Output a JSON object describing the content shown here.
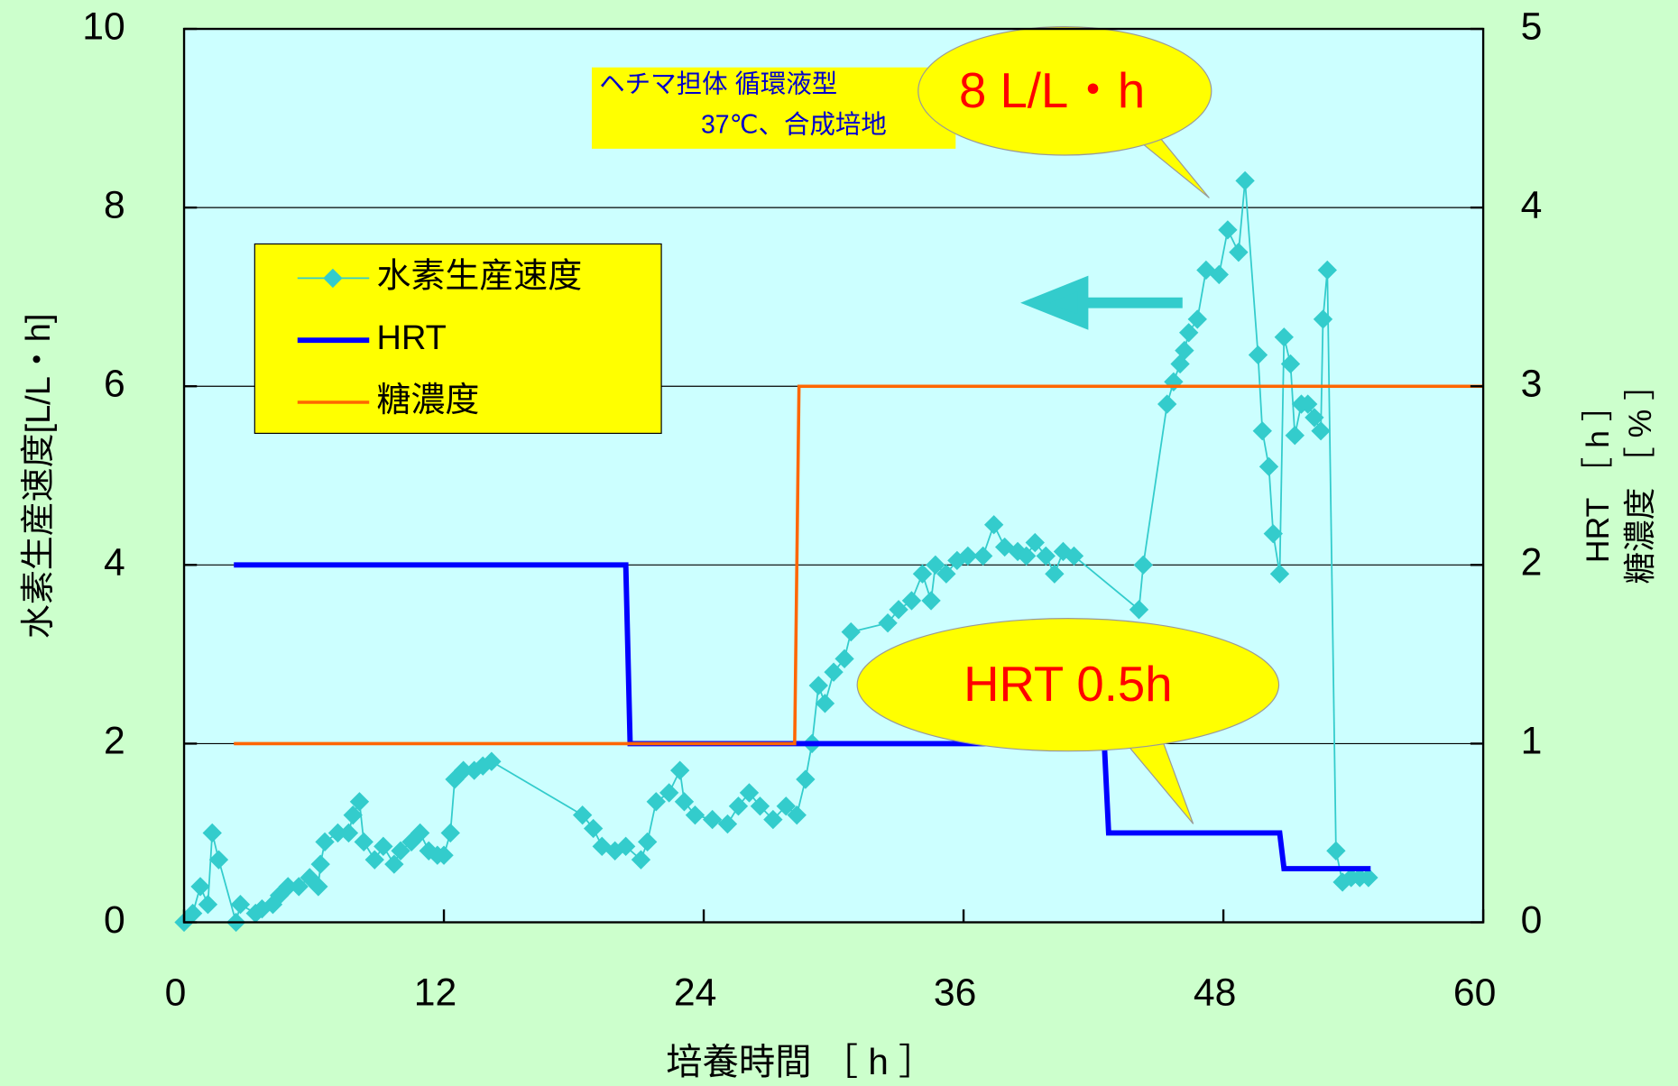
{
  "chart_data": {
    "type": "line",
    "xlabel": "培養時間 ［ h ］",
    "ylabel": "水素生産速度[L/L・h]",
    "y2label": [
      "HRT ［ h ］",
      "糖濃度 ［ % ］"
    ],
    "annotations": [
      "ヘチマ担体 循環液型",
      "37℃、合成培地",
      "8 L/L・h",
      "HRT 0.5h"
    ],
    "xlim": [
      0,
      60
    ],
    "xticks": [
      0,
      12,
      24,
      36,
      48,
      60
    ],
    "ylim": [
      0,
      10
    ],
    "yticks": [
      0,
      2,
      4,
      6,
      8,
      10
    ],
    "y2lim": [
      0,
      5
    ],
    "y2ticks": [
      0,
      1,
      2,
      3,
      4,
      5
    ],
    "grid": true,
    "legend": "upper left",
    "series": [
      {
        "name": "水素生産速度",
        "color": "#33cccc",
        "marker": "diamond",
        "x": [
          0.0,
          0.4,
          0.75,
          1.1,
          1.3,
          1.6,
          2.4,
          2.6,
          3.3,
          3.6,
          4.1,
          4.4,
          4.8,
          5.3,
          5.8,
          6.2,
          6.3,
          6.5,
          7.1,
          7.6,
          7.8,
          8.1,
          8.3,
          8.8,
          9.2,
          9.7,
          10.0,
          10.5,
          10.9,
          11.3,
          11.7,
          12.0,
          12.3,
          12.5,
          12.9,
          13.4,
          13.8,
          14.2,
          18.4,
          18.9,
          19.3,
          19.9,
          20.4,
          21.1,
          21.4,
          21.8,
          22.4,
          22.9,
          23.1,
          23.6,
          24.4,
          25.1,
          25.6,
          26.1,
          26.6,
          27.2,
          27.8,
          28.3,
          28.7,
          29.0,
          29.3,
          29.6,
          30.0,
          30.5,
          30.8,
          32.5,
          33.0,
          33.6,
          34.1,
          34.5,
          34.7,
          35.2,
          35.7,
          36.2,
          36.9,
          37.4,
          37.9,
          38.5,
          38.9,
          39.3,
          39.8,
          40.2,
          40.6,
          41.1,
          44.1,
          44.3,
          45.4,
          45.7,
          46.0,
          46.2,
          46.4,
          46.8,
          47.2,
          47.8,
          48.2,
          48.7,
          49.0,
          49.6,
          49.8,
          50.1,
          50.3,
          50.6,
          50.8,
          51.1,
          51.3,
          51.6,
          51.9,
          52.2,
          52.5,
          52.6,
          52.8,
          53.2,
          53.5,
          53.9,
          54.3,
          54.7
        ],
        "values": [
          0.0,
          0.1,
          0.4,
          0.2,
          1.0,
          0.7,
          0.0,
          0.2,
          0.1,
          0.15,
          0.2,
          0.3,
          0.4,
          0.4,
          0.5,
          0.4,
          0.65,
          0.9,
          1.0,
          1.0,
          1.2,
          1.35,
          0.9,
          0.7,
          0.85,
          0.65,
          0.8,
          0.9,
          1.0,
          0.8,
          0.75,
          0.75,
          1.0,
          1.6,
          1.7,
          1.7,
          1.75,
          1.8,
          1.2,
          1.05,
          0.85,
          0.8,
          0.85,
          0.7,
          0.9,
          1.35,
          1.45,
          1.7,
          1.35,
          1.2,
          1.15,
          1.1,
          1.3,
          1.45,
          1.3,
          1.15,
          1.3,
          1.2,
          1.6,
          2.0,
          2.65,
          2.45,
          2.8,
          2.95,
          3.25,
          3.35,
          3.5,
          3.6,
          3.9,
          3.6,
          4.0,
          3.9,
          4.05,
          4.1,
          4.1,
          4.45,
          4.2,
          4.15,
          4.1,
          4.25,
          4.1,
          3.9,
          4.15,
          4.1,
          3.5,
          4.0,
          5.8,
          6.05,
          6.25,
          6.4,
          6.6,
          6.75,
          7.3,
          7.25,
          7.75,
          7.5,
          8.3,
          6.35,
          5.5,
          5.1,
          4.35,
          3.9,
          6.55,
          6.25,
          5.45,
          5.8,
          5.8,
          5.65,
          5.5,
          6.75,
          7.3,
          0.8,
          0.45,
          0.5,
          0.5,
          0.5
        ]
      },
      {
        "name": "HRT",
        "color": "#0000ff",
        "axis": "y2",
        "width": 5,
        "x": [
          2.3,
          20.4,
          20.6,
          42.5,
          42.7,
          50.6,
          50.8,
          54.8
        ],
        "values": [
          2,
          2,
          1,
          1,
          0.5,
          0.5,
          0.3,
          0.3
        ]
      },
      {
        "name": "糖濃度",
        "color": "#ff6600",
        "axis": "y2",
        "width": 3,
        "x": [
          2.3,
          28.2,
          28.4,
          60
        ],
        "values": [
          1,
          1,
          3,
          3
        ]
      }
    ]
  }
}
